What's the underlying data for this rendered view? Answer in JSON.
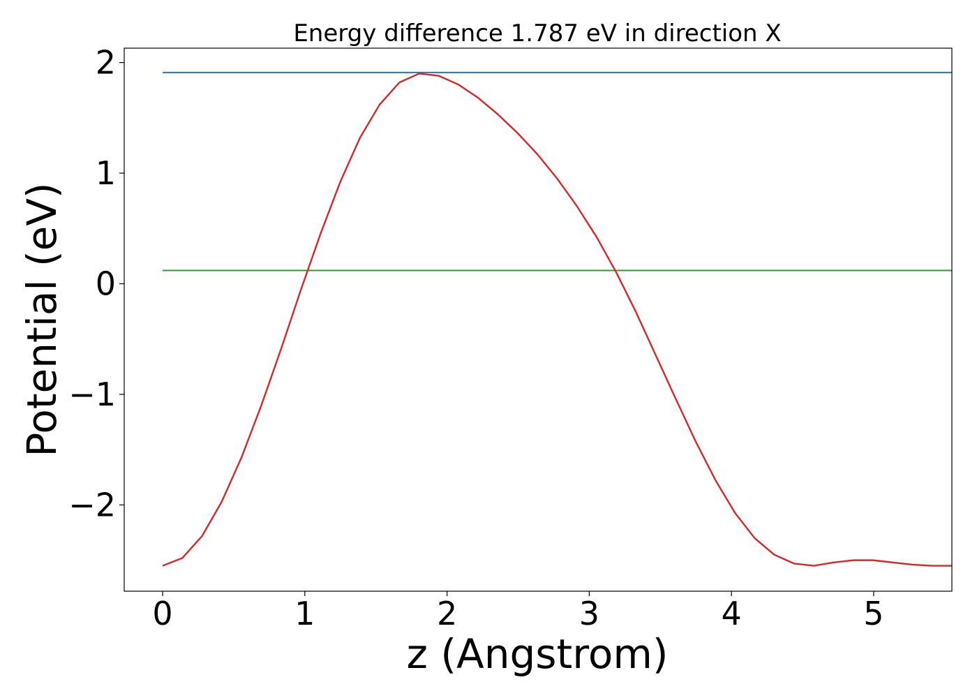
{
  "chart_data": {
    "type": "line",
    "title": "Energy difference 1.787 eV in direction X",
    "xlabel": "z (Angstrom)",
    "ylabel": "Potential (eV)",
    "xlim": [
      -0.27,
      5.55
    ],
    "ylim": [
      -2.78,
      2.13
    ],
    "xticks": [
      0,
      1,
      2,
      3,
      4,
      5
    ],
    "xtick_labels": [
      "0",
      "1",
      "2",
      "3",
      "4",
      "5"
    ],
    "yticks": [
      -2,
      -1,
      0,
      1,
      2
    ],
    "ytick_labels": [
      "−2",
      "−1",
      "0",
      "1",
      "2"
    ],
    "grid": false,
    "legend": "none",
    "series": [
      {
        "color": "#1f77b4",
        "x": [
          0,
          5.55
        ],
        "y": [
          1.91,
          1.91
        ]
      },
      {
        "color": "#2ca02c",
        "x": [
          0,
          5.55
        ],
        "y": [
          0.12,
          0.12
        ]
      },
      {
        "color": "#d62728",
        "x": [
          0.0,
          0.139,
          0.278,
          0.416,
          0.555,
          0.694,
          0.833,
          0.971,
          1.11,
          1.249,
          1.388,
          1.526,
          1.665,
          1.804,
          1.943,
          2.081,
          2.22,
          2.359,
          2.498,
          2.636,
          2.775,
          2.914,
          3.053,
          3.191,
          3.33,
          3.469,
          3.608,
          3.746,
          3.885,
          4.024,
          4.163,
          4.301,
          4.44,
          4.579,
          4.718,
          4.856,
          4.995,
          5.134,
          5.273,
          5.411,
          5.55
        ],
        "y": [
          -2.55,
          -2.48,
          -2.28,
          -1.97,
          -1.57,
          -1.1,
          -0.59,
          -0.06,
          0.45,
          0.92,
          1.32,
          1.62,
          1.82,
          1.9,
          1.88,
          1.8,
          1.68,
          1.53,
          1.36,
          1.17,
          0.95,
          0.7,
          0.42,
          0.1,
          -0.26,
          -0.65,
          -1.04,
          -1.42,
          -1.77,
          -2.07,
          -2.3,
          -2.45,
          -2.53,
          -2.55,
          -2.52,
          -2.5,
          -2.5,
          -2.52,
          -2.54,
          -2.55,
          -2.55
        ]
      }
    ]
  }
}
